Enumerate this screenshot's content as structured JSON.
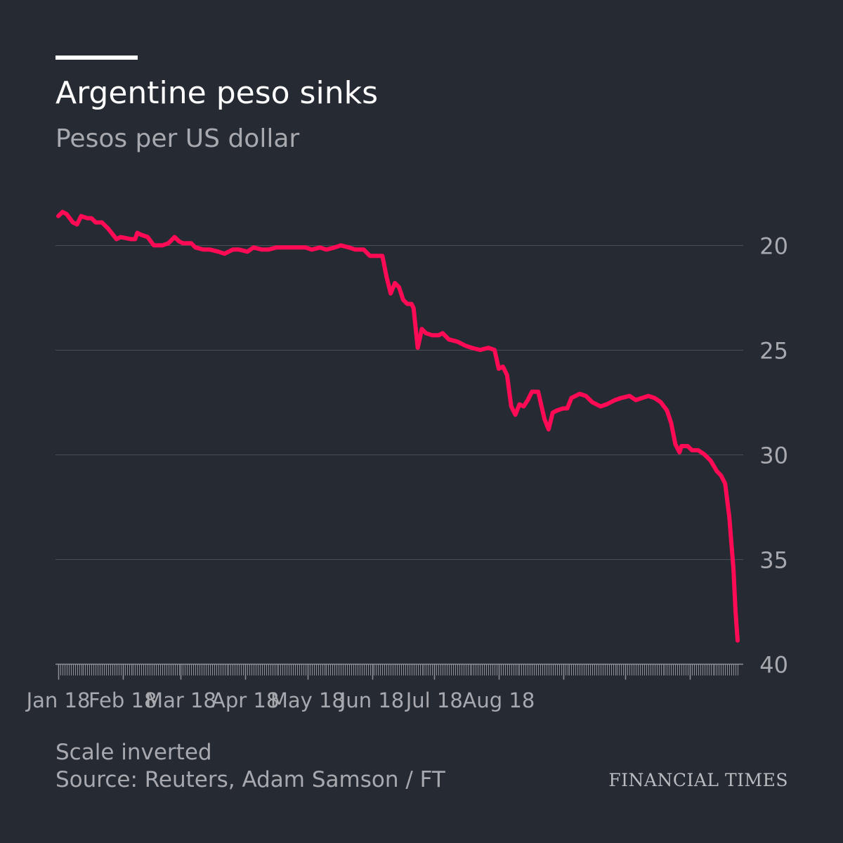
{
  "header": {
    "title": "Argentine peso sinks",
    "subtitle": "Pesos per US dollar"
  },
  "footer": {
    "note": "Scale inverted",
    "source": "Source: Reuters, Adam Samson / FT",
    "brand": "FINANCIAL TIMES"
  },
  "colors": {
    "background": "#262a33",
    "line": "#ff0a55",
    "grid": "#4a4e57",
    "tick_label": "#a7a9ae",
    "axis": "#8e9096"
  },
  "chart_data": {
    "type": "line",
    "title": "Argentine peso sinks",
    "subtitle": "Pesos per US dollar",
    "xlabel": "",
    "ylabel": "",
    "y_inverted": true,
    "ylim": [
      15,
      40
    ],
    "y_ticks": [
      20,
      25,
      30,
      35,
      40
    ],
    "x_tick_labels": [
      "Jan 18",
      "Feb 18",
      "Mar 18",
      "Apr 18",
      "May 18",
      "Jun 18",
      "Jul 18",
      "Aug 18"
    ],
    "grid": true,
    "series": [
      {
        "points": [
          [
            "2018-01-01",
            18.6
          ],
          [
            "2018-01-03",
            18.4
          ],
          [
            "2018-01-05",
            18.5
          ],
          [
            "2018-01-08",
            18.9
          ],
          [
            "2018-01-10",
            19.0
          ],
          [
            "2018-01-12",
            18.6
          ],
          [
            "2018-01-15",
            18.7
          ],
          [
            "2018-01-17",
            18.7
          ],
          [
            "2018-01-19",
            18.9
          ],
          [
            "2018-01-22",
            18.9
          ],
          [
            "2018-01-25",
            19.2
          ],
          [
            "2018-01-29",
            19.7
          ],
          [
            "2018-01-31",
            19.6
          ],
          [
            "2018-02-05",
            19.7
          ],
          [
            "2018-02-07",
            19.7
          ],
          [
            "2018-02-08",
            19.4
          ],
          [
            "2018-02-10",
            19.5
          ],
          [
            "2018-02-13",
            19.6
          ],
          [
            "2018-02-16",
            20.0
          ],
          [
            "2018-02-20",
            20.0
          ],
          [
            "2018-02-23",
            19.9
          ],
          [
            "2018-02-26",
            19.6
          ],
          [
            "2018-02-28",
            19.8
          ],
          [
            "2018-03-02",
            19.9
          ],
          [
            "2018-03-06",
            19.9
          ],
          [
            "2018-03-08",
            20.1
          ],
          [
            "2018-03-12",
            20.2
          ],
          [
            "2018-03-15",
            20.2
          ],
          [
            "2018-03-19",
            20.3
          ],
          [
            "2018-03-22",
            20.4
          ],
          [
            "2018-03-26",
            20.2
          ],
          [
            "2018-03-29",
            20.2
          ],
          [
            "2018-04-02",
            20.3
          ],
          [
            "2018-04-05",
            20.1
          ],
          [
            "2018-04-09",
            20.2
          ],
          [
            "2018-04-12",
            20.2
          ],
          [
            "2018-04-16",
            20.1
          ],
          [
            "2018-04-23",
            20.1
          ],
          [
            "2018-04-30",
            20.1
          ],
          [
            "2018-05-03",
            20.2
          ],
          [
            "2018-05-07",
            20.1
          ],
          [
            "2018-05-10",
            20.2
          ],
          [
            "2018-05-14",
            20.1
          ],
          [
            "2018-05-17",
            20.0
          ],
          [
            "2018-05-21",
            20.1
          ],
          [
            "2018-05-24",
            20.2
          ],
          [
            "2018-05-28",
            20.2
          ],
          [
            "2018-05-31",
            20.5
          ],
          [
            "2018-06-06",
            20.5
          ],
          [
            "2018-06-08",
            21.5
          ],
          [
            "2018-06-10",
            22.3
          ],
          [
            "2018-06-12",
            21.8
          ],
          [
            "2018-06-14",
            22.0
          ],
          [
            "2018-06-16",
            22.6
          ],
          [
            "2018-06-18",
            22.8
          ],
          [
            "2018-06-20",
            22.8
          ],
          [
            "2018-06-21",
            23.0
          ],
          [
            "2018-06-23",
            24.9
          ],
          [
            "2018-06-25",
            24.0
          ],
          [
            "2018-06-27",
            24.2
          ],
          [
            "2018-06-30",
            24.3
          ],
          [
            "2018-07-03",
            24.3
          ],
          [
            "2018-07-05",
            24.2
          ],
          [
            "2018-07-08",
            24.5
          ],
          [
            "2018-07-12",
            24.6
          ],
          [
            "2018-07-16",
            24.8
          ],
          [
            "2018-07-19",
            24.9
          ],
          [
            "2018-07-23",
            25.0
          ],
          [
            "2018-07-27",
            24.9
          ],
          [
            "2018-07-30",
            25.0
          ],
          [
            "2018-08-01",
            25.9
          ],
          [
            "2018-08-03",
            25.8
          ],
          [
            "2018-08-05",
            26.2
          ],
          [
            "2018-08-07",
            27.7
          ],
          [
            "2018-08-09",
            28.1
          ],
          [
            "2018-08-11",
            27.6
          ],
          [
            "2018-08-13",
            27.7
          ],
          [
            "2018-08-15",
            27.4
          ],
          [
            "2018-08-17",
            27.0
          ],
          [
            "2018-08-20",
            27.0
          ],
          [
            "2018-08-23",
            28.3
          ],
          [
            "2018-08-25",
            28.8
          ],
          [
            "2018-08-27",
            28.0
          ],
          [
            "2018-08-29",
            27.9
          ],
          [
            "2018-09-01",
            27.8
          ],
          [
            "2018-09-03",
            27.8
          ],
          [
            "2018-09-05",
            27.3
          ],
          [
            "2018-09-07",
            27.2
          ],
          [
            "2018-09-09",
            27.1
          ],
          [
            "2018-09-12",
            27.2
          ],
          [
            "2018-09-15",
            27.5
          ],
          [
            "2018-09-19",
            27.7
          ],
          [
            "2018-09-22",
            27.6
          ],
          [
            "2018-09-26",
            27.4
          ],
          [
            "2018-09-29",
            27.3
          ],
          [
            "2018-10-03",
            27.2
          ],
          [
            "2018-10-06",
            27.4
          ],
          [
            "2018-10-09",
            27.3
          ],
          [
            "2018-10-12",
            27.2
          ],
          [
            "2018-10-15",
            27.3
          ],
          [
            "2018-10-18",
            27.5
          ],
          [
            "2018-10-21",
            27.9
          ],
          [
            "2018-10-23",
            28.5
          ],
          [
            "2018-10-25",
            29.5
          ],
          [
            "2018-10-27",
            29.9
          ],
          [
            "2018-10-28",
            29.6
          ],
          [
            "2018-10-31",
            29.6
          ],
          [
            "2018-11-02",
            29.8
          ],
          [
            "2018-11-05",
            29.8
          ],
          [
            "2018-11-08",
            30.0
          ],
          [
            "2018-11-11",
            30.3
          ],
          [
            "2018-11-14",
            30.8
          ],
          [
            "2018-11-16",
            31.0
          ],
          [
            "2018-11-18",
            31.4
          ],
          [
            "2018-11-20",
            33.0
          ],
          [
            "2018-11-22",
            35.5
          ],
          [
            "2018-11-23",
            37.5
          ],
          [
            "2018-11-24",
            38.9
          ]
        ]
      }
    ]
  }
}
